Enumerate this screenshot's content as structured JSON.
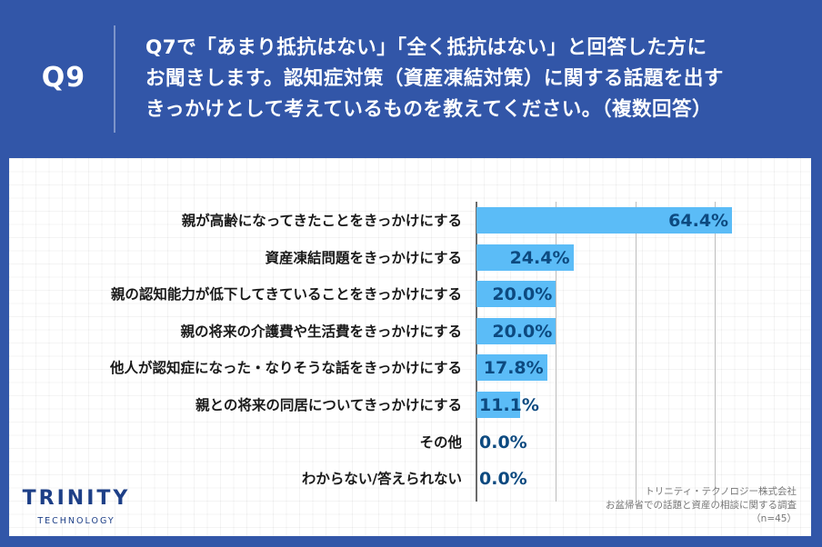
{
  "header": {
    "question_number": "Q9",
    "title_lines": [
      "Q7で「あまり抵抗はない」「全く抵抗はない」と回答した方に",
      "お聞きします。認知症対策（資産凍結対策）に関する話題を出す",
      "きっかけとして考えているものを教えてください。（複数回答）"
    ]
  },
  "colors": {
    "background": "#3256a8",
    "bar": "#5bbcf7",
    "value_label": "#0d4a80",
    "logo": "#1d3f87"
  },
  "chart_data": {
    "type": "bar",
    "orientation": "horizontal",
    "title": "Q7で「あまり抵抗はない」「全く抵抗はない」と回答した方にお聞きします。認知症対策（資産凍結対策）に関する話題を出すきっかけとして考えているものを教えてください。（複数回答）",
    "xlabel": "",
    "ylabel": "",
    "unit": "%",
    "xlim": [
      0,
      80
    ],
    "grid_ticks": [
      0,
      20,
      40,
      60
    ],
    "grid": true,
    "legend": null,
    "categories": [
      "親が高齢になってきたことをきっかけにする",
      "資産凍結問題をきっかけにする",
      "親の認知能力が低下してきていることをきっかけにする",
      "親の将来の介護費や生活費をきっかけにする",
      "他人が認知症になった・なりそうな話をきっかけにする",
      "親との将来の同居についてきっかけにする",
      "その他",
      "わからない/答えられない"
    ],
    "values": [
      64.4,
      24.4,
      20.0,
      20.0,
      17.8,
      11.1,
      0.0,
      0.0
    ],
    "value_labels": [
      "64.4%",
      "24.4%",
      "20.0%",
      "20.0%",
      "17.8%",
      "11.1%",
      "0.0%",
      "0.0%"
    ],
    "n": 45
  },
  "logo": {
    "main": "TRINITY",
    "sub": "TECHNOLOGY"
  },
  "source": {
    "company": "トリニティ・テクノロジー株式会社",
    "survey": "お盆帰省での話題と資産の相談に関する調査",
    "sample": "（n=45）"
  }
}
